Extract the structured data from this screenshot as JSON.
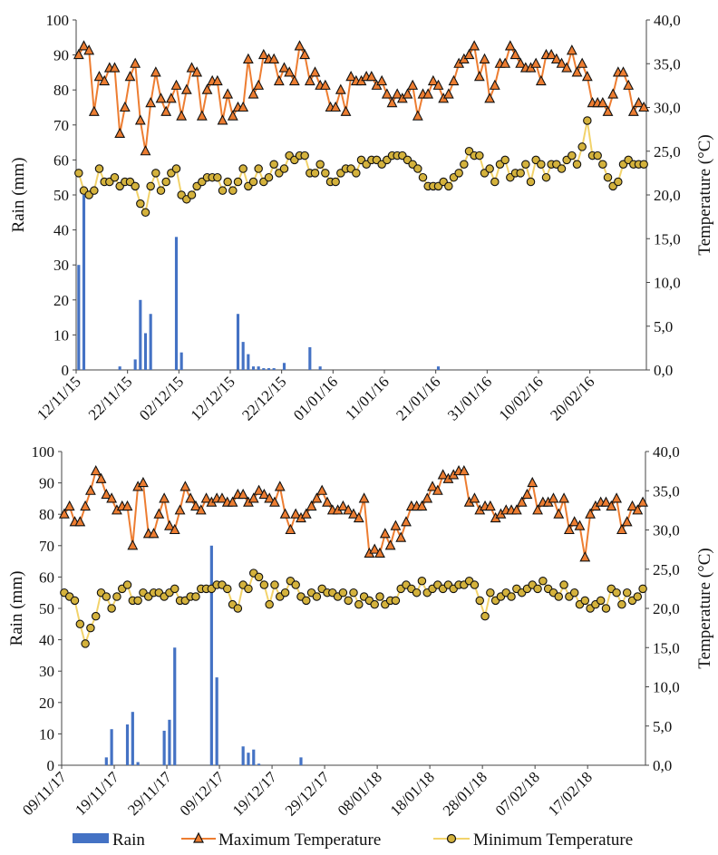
{
  "chart_data": [
    {
      "type": "bar",
      "panel": "2015-2016",
      "ylabel": "Rain (mm)",
      "y2label": "Temperature (°C)",
      "ylim": [
        0,
        100
      ],
      "y2lim": [
        0,
        40
      ],
      "yticks": [
        "0",
        "10",
        "20",
        "30",
        "40",
        "50",
        "60",
        "70",
        "80",
        "90",
        "100"
      ],
      "y2ticks": [
        "0,0",
        "5,0",
        "10,0",
        "15,0",
        "20,0",
        "25,0",
        "30,0",
        "35,0",
        "40,0"
      ],
      "xticks": [
        "12/11/15",
        "22/11/15",
        "02/12/15",
        "12/12/15",
        "22/12/15",
        "01/01/16",
        "11/01/16",
        "21/01/16",
        "31/01/16",
        "10/02/16",
        "20/02/16"
      ],
      "days": 111,
      "series": [
        {
          "name": "Rain",
          "axis": "left",
          "values": [
            30,
            50,
            0,
            0,
            0,
            0,
            0,
            0,
            1,
            0,
            0,
            3,
            20,
            10.5,
            16,
            0,
            0,
            0,
            0,
            38,
            5,
            0,
            0,
            0,
            0,
            0,
            0,
            0,
            0,
            0,
            0,
            16,
            8,
            4.5,
            1,
            1,
            0.5,
            0.5,
            0.5,
            0,
            2,
            0,
            0,
            0,
            0,
            6.5,
            0,
            1,
            0,
            0,
            0,
            0,
            0,
            0,
            0,
            0,
            0,
            0,
            0,
            0,
            0,
            0,
            0,
            0,
            0,
            0,
            0,
            0,
            0,
            0,
            1,
            0,
            0,
            0,
            0,
            0,
            0,
            0,
            0,
            0,
            0,
            0,
            0,
            0,
            0,
            0,
            0,
            0,
            0,
            0,
            0,
            0,
            0,
            0,
            0,
            0,
            0,
            0,
            0,
            0,
            0,
            0,
            0,
            0,
            0,
            0,
            0,
            0,
            0,
            0,
            0
          ]
        },
        {
          "name": "Maximum Temperature",
          "axis": "right",
          "values": [
            36,
            37,
            36.5,
            29.5,
            33.5,
            33,
            34.5,
            34.5,
            27,
            30,
            33.5,
            35,
            28.5,
            25,
            30.5,
            34,
            31,
            29.5,
            31,
            32.5,
            29,
            32,
            34.5,
            34,
            29,
            32,
            33,
            33,
            28.5,
            31.5,
            29,
            30,
            30,
            35.5,
            31.5,
            32.5,
            36,
            35.5,
            35.5,
            33,
            34.5,
            34,
            33,
            37,
            36,
            33,
            34,
            32.5,
            32.5,
            30,
            30,
            32,
            29.5,
            33.5,
            33,
            33,
            33.5,
            33.5,
            32.5,
            33,
            31.5,
            30.5,
            31.5,
            31,
            31.5,
            32.5,
            29,
            31.5,
            31.5,
            33,
            32.5,
            31,
            31.5,
            33,
            35,
            35.5,
            36,
            37,
            33.5,
            35.5,
            31,
            32.5,
            35,
            35,
            37,
            36,
            35,
            34.5,
            34.5,
            35,
            33,
            36,
            36,
            35.5,
            35,
            34.5,
            36.5,
            34,
            35,
            33.5,
            30.5,
            30.5,
            30.5,
            29.5,
            31.5,
            34,
            34,
            32.5,
            29.5,
            30.5,
            30
          ]
        },
        {
          "name": "Minimum Temperature",
          "axis": "right",
          "values": [
            22.5,
            20.5,
            20,
            20.5,
            23,
            21.5,
            21.5,
            22,
            21,
            21.5,
            21.5,
            21,
            19,
            18,
            21,
            22.5,
            20.5,
            21.5,
            22.5,
            23,
            20,
            19.5,
            20,
            21,
            21.5,
            22,
            22,
            22,
            20.5,
            21.5,
            20.5,
            21.5,
            23,
            21,
            21.5,
            23,
            21.5,
            22,
            23.5,
            22.5,
            23,
            24.5,
            24,
            24.5,
            24.5,
            22.5,
            22.5,
            23.5,
            22.5,
            21.5,
            21.5,
            22.5,
            23,
            23,
            22.5,
            24,
            23.5,
            24,
            24,
            23.5,
            24,
            24.5,
            24.5,
            24.5,
            24,
            23.5,
            23,
            22,
            21,
            21,
            21,
            21.5,
            21,
            22,
            22.5,
            23.5,
            25,
            24.5,
            24.5,
            22.5,
            23,
            21.5,
            23.5,
            24,
            22,
            22.5,
            22.5,
            23.5,
            21.5,
            24,
            23.5,
            22,
            23.5,
            23.5,
            23,
            24,
            24.5,
            23.5,
            25.5,
            28.5,
            24.5,
            24.5,
            23.5,
            22,
            21,
            21.5,
            23.5,
            24,
            23.5,
            23.5,
            23.5
          ]
        }
      ]
    },
    {
      "type": "bar",
      "panel": "2017-2018",
      "ylabel": "Rain (mm)",
      "y2label": "Temperature (°C)",
      "ylim": [
        0,
        100
      ],
      "y2lim": [
        0,
        40
      ],
      "yticks": [
        "0",
        "10",
        "20",
        "30",
        "40",
        "50",
        "60",
        "70",
        "80",
        "90",
        "100"
      ],
      "y2ticks": [
        "0,0",
        "5,0",
        "10,0",
        "15,0",
        "20,0",
        "25,0",
        "30,0",
        "35,0",
        "40,0"
      ],
      "xticks": [
        "09/11/17",
        "19/11/17",
        "29/11/17",
        "09/12/17",
        "19/12/17",
        "29/12/17",
        "08/01/18",
        "18/01/18",
        "28/01/18",
        "07/02/18",
        "17/02/18"
      ],
      "days": 111,
      "series": [
        {
          "name": "Rain",
          "axis": "left",
          "values": [
            0,
            0,
            0,
            0,
            0,
            0,
            0,
            0,
            2.5,
            11.5,
            0,
            0,
            13,
            17,
            1,
            0,
            0,
            0,
            0,
            11,
            14.5,
            37.5,
            0,
            0,
            0,
            0,
            0,
            0,
            70,
            28,
            0,
            0,
            0,
            0,
            6,
            4,
            5,
            0.5,
            0,
            0,
            0,
            0,
            0,
            0,
            0,
            2.5,
            0,
            0,
            0,
            0,
            0,
            0,
            0,
            0,
            0,
            0,
            0,
            0,
            0,
            0,
            0,
            0,
            0,
            0,
            0,
            0,
            0,
            0,
            0,
            0,
            0,
            0,
            0,
            0,
            0,
            0,
            0,
            0,
            0,
            0,
            0,
            0,
            0,
            0,
            0,
            0,
            0,
            0,
            0,
            0,
            0,
            0,
            0,
            0,
            0,
            0,
            0,
            0,
            0,
            0,
            0,
            0,
            0,
            0,
            0,
            0,
            0,
            0,
            0,
            0,
            0
          ]
        },
        {
          "name": "Maximum Temperature",
          "axis": "right",
          "values": [
            32,
            33,
            31,
            31,
            33,
            35,
            37.5,
            36.5,
            34.5,
            34,
            32.5,
            33,
            33,
            28,
            35.5,
            36,
            29.5,
            29.5,
            32,
            34,
            30.5,
            30,
            32.5,
            35.5,
            34,
            33,
            32.5,
            34,
            33.5,
            34,
            34,
            33.5,
            33.5,
            34.5,
            34.5,
            33.5,
            34,
            35,
            34.5,
            34,
            33.5,
            35.5,
            32,
            30,
            32,
            31.5,
            32,
            33,
            34,
            35,
            33.5,
            32.5,
            32.5,
            33,
            32.5,
            32,
            31.5,
            34,
            27,
            27.5,
            27,
            29.5,
            28,
            30.5,
            29,
            31,
            33,
            33,
            33,
            34,
            35.5,
            35,
            37,
            36.5,
            37,
            37.5,
            37.5,
            33.5,
            34,
            32.5,
            33,
            33,
            31.5,
            32,
            32.5,
            32.5,
            32.5,
            33.5,
            34.5,
            36,
            32.5,
            33.5,
            33.5,
            34,
            32,
            34,
            30,
            31,
            30.5,
            26.5,
            32,
            33,
            33.5,
            33.5,
            33,
            34,
            30,
            31,
            33,
            32.5,
            33.5
          ]
        },
        {
          "name": "Minimum Temperature",
          "axis": "right",
          "values": [
            22,
            21.5,
            21,
            18,
            15.5,
            17.5,
            19,
            22,
            21.5,
            20,
            21.5,
            22.5,
            23,
            21,
            21,
            22,
            21.5,
            22,
            22,
            21.5,
            22,
            22.5,
            21,
            21,
            21.5,
            21.5,
            22.5,
            22.5,
            22.5,
            23,
            23,
            22.5,
            20.5,
            20,
            23,
            22.5,
            24.5,
            24,
            23,
            20.5,
            23,
            21.5,
            22,
            23.5,
            23,
            21.5,
            21,
            22,
            21.5,
            22.5,
            22,
            22,
            21.5,
            22,
            21,
            22,
            20.5,
            21.5,
            21,
            20.5,
            21.5,
            20.5,
            21,
            21,
            22.5,
            23,
            22.5,
            22,
            23.5,
            22,
            22.5,
            23,
            22.5,
            23,
            22.5,
            23,
            23,
            23.5,
            23,
            21,
            19,
            22,
            21,
            21.5,
            22,
            21.5,
            22.5,
            22,
            22.5,
            23,
            22.5,
            23.5,
            22.5,
            22,
            21.5,
            23,
            21.5,
            22,
            20.5,
            21,
            20,
            20.5,
            21,
            20,
            22.5,
            22,
            20.5,
            22,
            21,
            21.5,
            22.5
          ]
        }
      ]
    }
  ],
  "legend": {
    "items": [
      {
        "label": "Rain",
        "color": "#4472c4",
        "symbol": "bar"
      },
      {
        "label": "Maximum Temperature",
        "color": "#ed7d31",
        "symbol": "triangle"
      },
      {
        "label": "Minimum Temperature",
        "color": "#f2d36b",
        "symbol": "circle"
      }
    ]
  },
  "colors": {
    "rain": "#4472c4",
    "max_line": "#ed7d31",
    "min_line": "#f2d36b",
    "marker_fill_max": "#ed7d31",
    "marker_fill_min": "#d4b23c",
    "marker_stroke": "#111111"
  }
}
